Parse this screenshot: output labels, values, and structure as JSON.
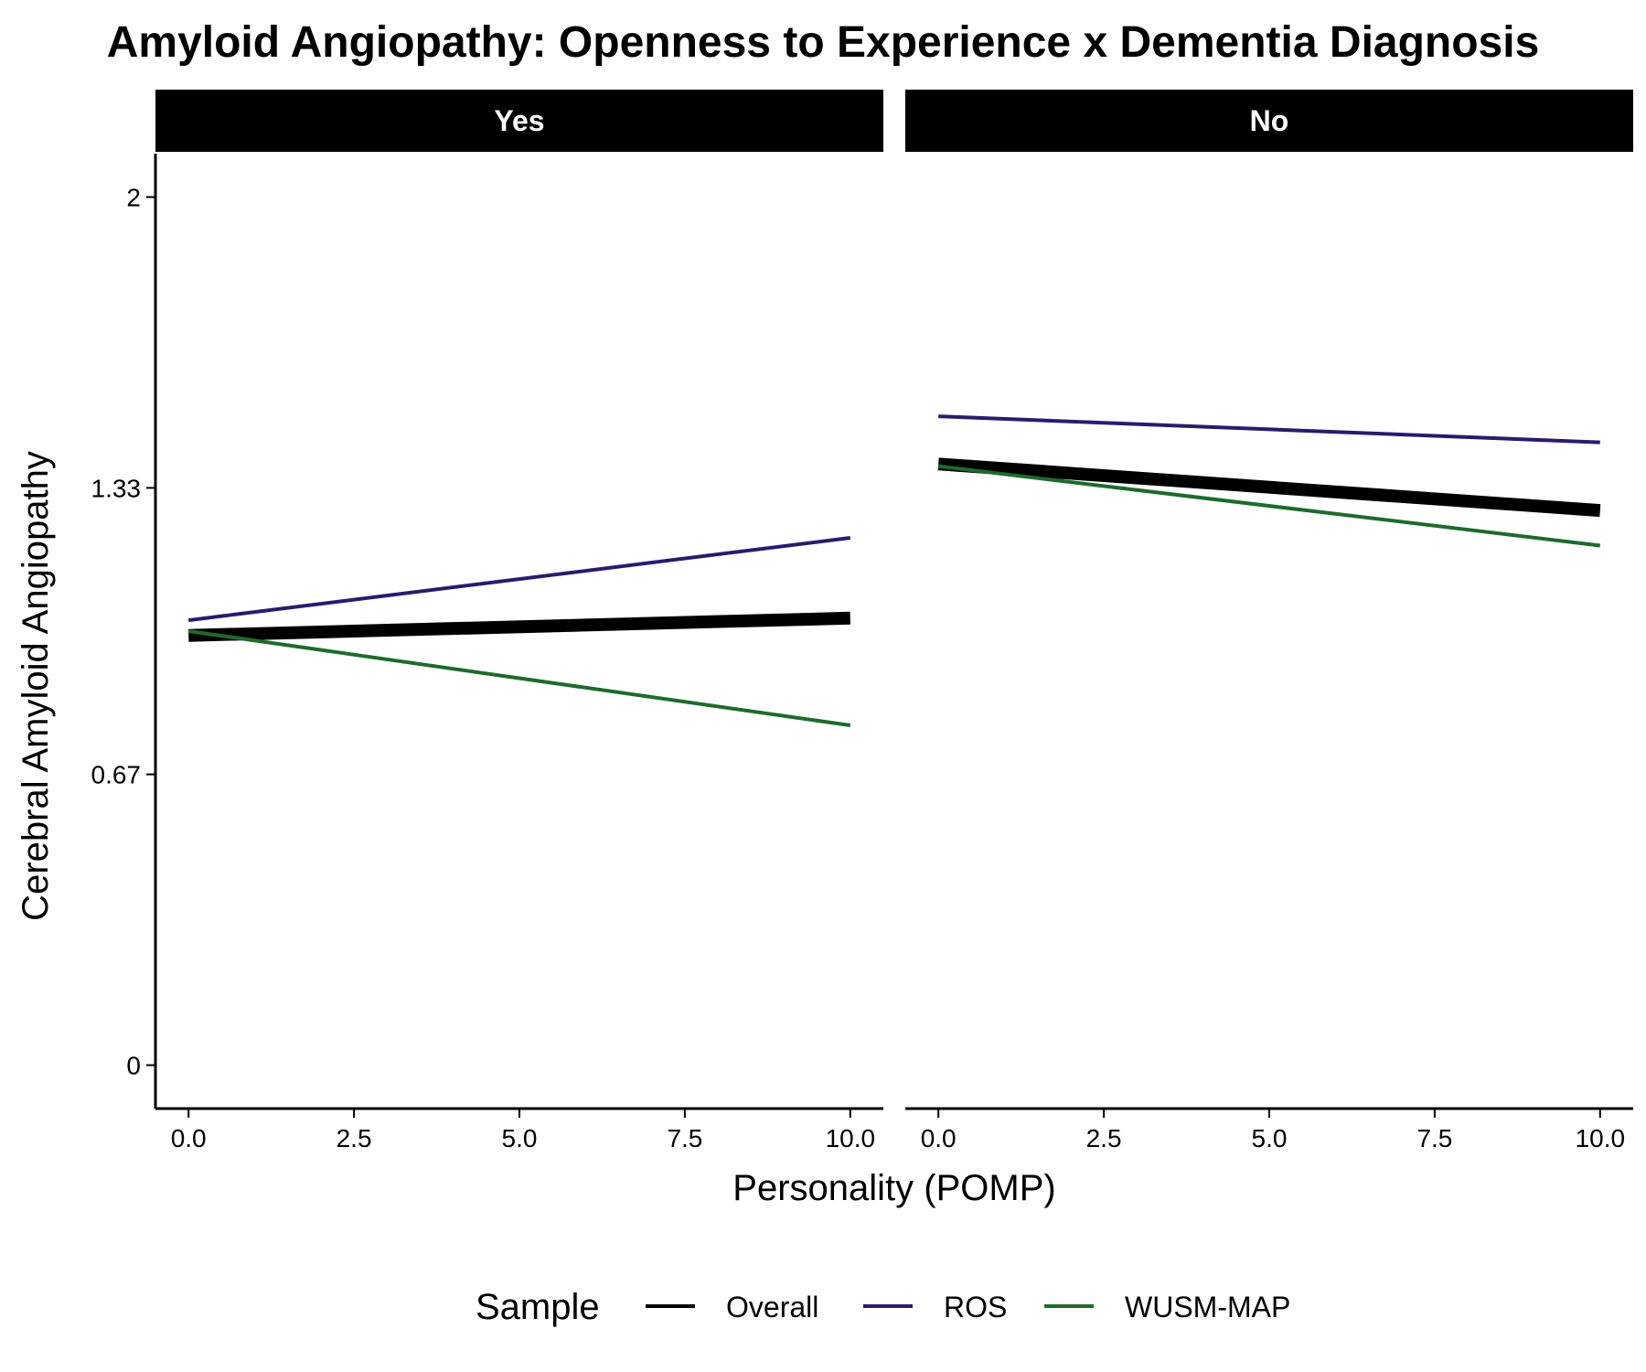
{
  "chart_data": {
    "type": "line",
    "title": "Amyloid Angiopathy: Openness to Experience x Dementia Diagnosis",
    "xlabel": "Personality (POMP)",
    "ylabel": "Cerebral Amyloid Angiopathy",
    "xlim": [
      -0.5,
      10.5
    ],
    "ylim": [
      -0.1,
      2.1
    ],
    "x_ticks": [
      0,
      2.5,
      5,
      7.5,
      10
    ],
    "x_tick_labels": [
      "0.0",
      "2.5",
      "5.0",
      "7.5",
      "10.0"
    ],
    "y_ticks": [
      0,
      0.67,
      1.33,
      2
    ],
    "y_tick_labels": [
      "0",
      "0.67",
      "1.33",
      "2"
    ],
    "grid": false,
    "legend": {
      "title": "Sample",
      "position": "bottom",
      "entries": [
        "Overall",
        "ROS",
        "WUSM-MAP"
      ]
    },
    "panels": [
      {
        "label": "Yes",
        "series": [
          {
            "name": "Overall",
            "color": "#000000",
            "width": "thick",
            "x": [
              0,
              10
            ],
            "y": [
              0.99,
              1.03
            ]
          },
          {
            "name": "ROS",
            "color": "#2c1a6e",
            "width": "thin",
            "x": [
              0,
              10
            ],
            "y": [
              1.025,
              1.215
            ]
          },
          {
            "name": "WUSM-MAP",
            "color": "#1d6b2c",
            "width": "thin",
            "x": [
              0,
              10
            ],
            "y": [
              1.0,
              0.783
            ]
          }
        ]
      },
      {
        "label": "No",
        "series": [
          {
            "name": "Overall",
            "color": "#000000",
            "width": "thick",
            "x": [
              0,
              10
            ],
            "y": [
              1.385,
              1.278
            ]
          },
          {
            "name": "ROS",
            "color": "#2c1a6e",
            "width": "thin",
            "x": [
              0,
              10
            ],
            "y": [
              1.495,
              1.435
            ]
          },
          {
            "name": "WUSM-MAP",
            "color": "#1d6b2c",
            "width": "thin",
            "x": [
              0,
              10
            ],
            "y": [
              1.38,
              1.197
            ]
          }
        ]
      }
    ]
  }
}
